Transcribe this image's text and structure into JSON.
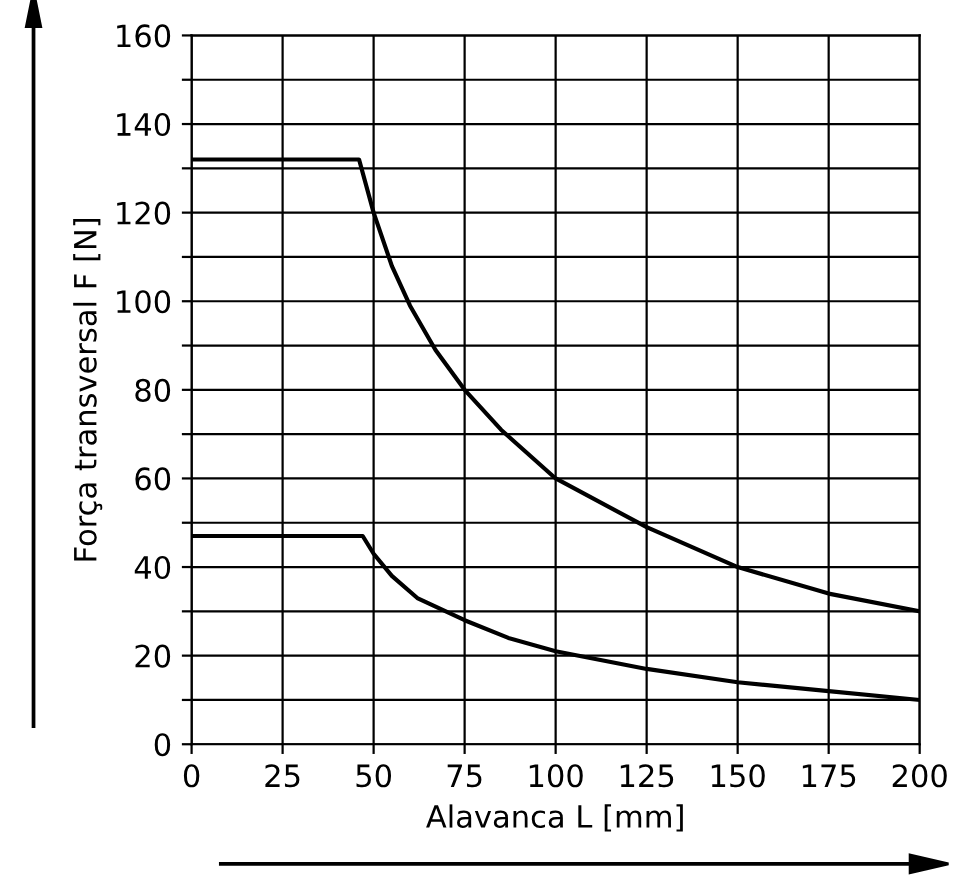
{
  "chart_data": {
    "type": "line",
    "xlabel": "Alavanca L [mm]",
    "ylabel": "Força transversal F [N]",
    "xlim": [
      0,
      200
    ],
    "xticks": [
      0,
      25,
      50,
      75,
      100,
      125,
      150,
      175,
      200
    ],
    "ylim": [
      0,
      160
    ],
    "yticks": [
      0,
      {
        "value": 10,
        "label": null
      },
      20,
      {
        "value": 30,
        "label": null
      },
      40,
      {
        "value": 50,
        "label": null
      },
      60,
      {
        "value": 70,
        "label": null
      },
      80,
      {
        "value": 90,
        "label": null
      },
      100,
      {
        "value": 110,
        "label": null
      },
      120,
      {
        "value": 130,
        "label": null
      },
      140,
      {
        "value": 150,
        "label": null
      },
      160
    ],
    "grid": true,
    "marker": "none",
    "line_style": "solid",
    "series": [
      {
        "color": "#000000",
        "x": [
          0,
          46,
          50,
          55,
          60,
          67,
          75,
          85,
          100,
          125,
          150,
          175,
          200
        ],
        "values": [
          132,
          132,
          120,
          108,
          99,
          89,
          80,
          71,
          60,
          49,
          40,
          34,
          30
        ]
      },
      {
        "color": "#000000",
        "x": [
          0,
          47,
          50,
          55,
          62,
          75,
          87,
          100,
          125,
          150,
          175,
          200
        ],
        "values": [
          47,
          47,
          43,
          38,
          33,
          28,
          24,
          21,
          17,
          14,
          12,
          10
        ]
      }
    ]
  }
}
